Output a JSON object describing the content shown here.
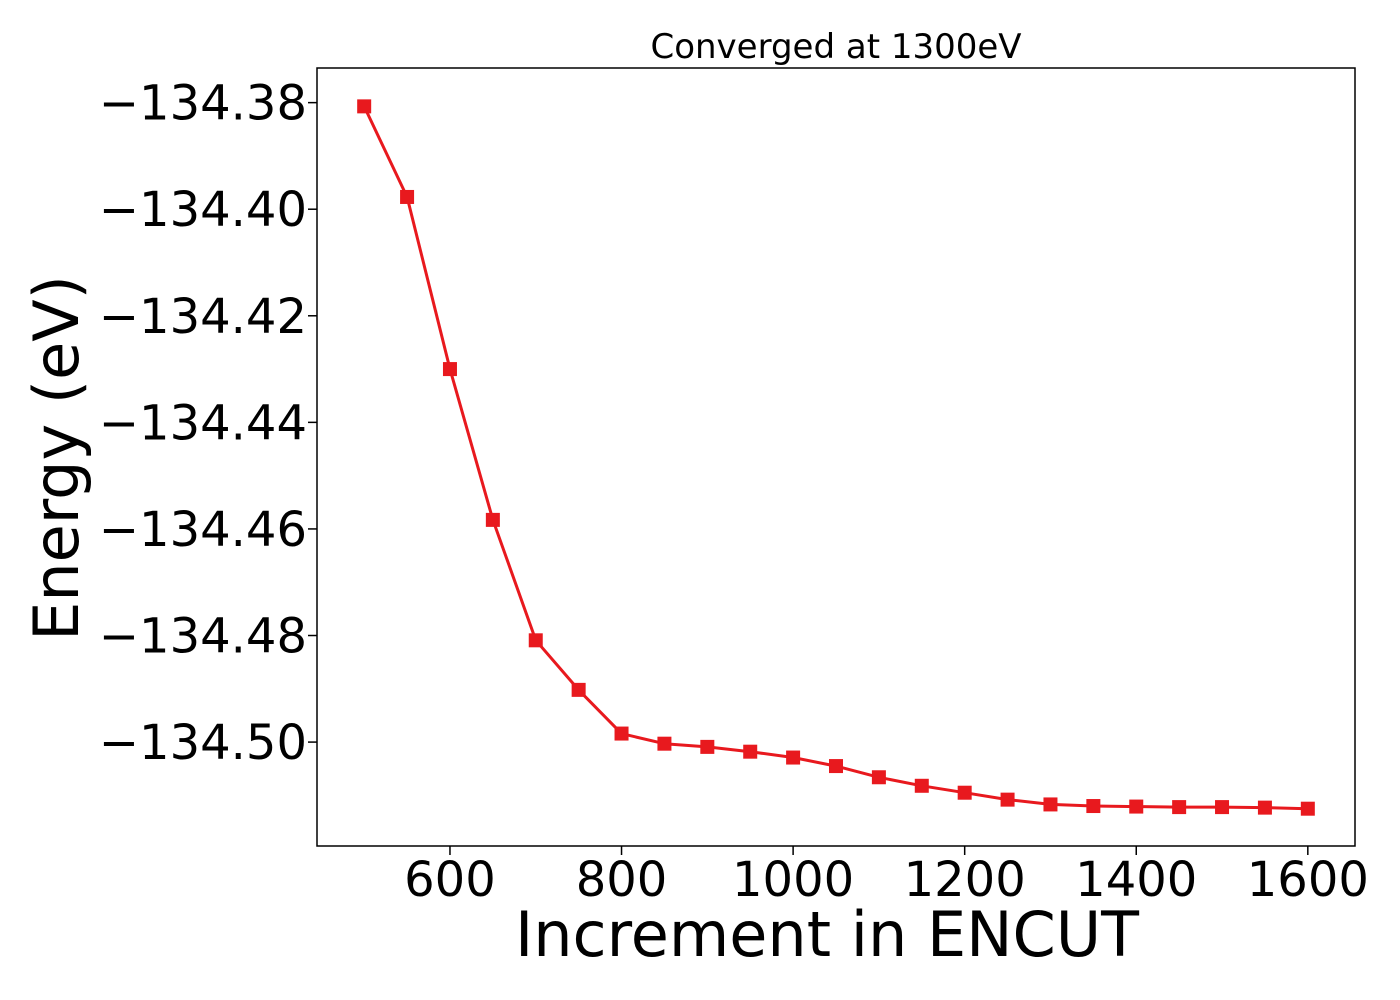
{
  "chart_data": {
    "type": "line",
    "title": "Converged at 1300eV",
    "xlabel": "Increment in ENCUT",
    "ylabel": "Energy (eV)",
    "xlim": [
      445,
      1655
    ],
    "ylim": [
      -134.5195,
      -134.3735
    ],
    "x_ticks": [
      600,
      800,
      1000,
      1200,
      1400,
      1600
    ],
    "x_tick_labels": [
      "600",
      "800",
      "1000",
      "1200",
      "1400",
      "1600"
    ],
    "y_ticks": [
      -134.38,
      -134.4,
      -134.42,
      -134.44,
      -134.46,
      -134.48,
      -134.5
    ],
    "y_tick_labels": [
      "−134.38",
      "−134.40",
      "−134.42",
      "−134.44",
      "−134.46",
      "−134.48",
      "−134.50"
    ],
    "grid": false,
    "series": [
      {
        "color": "#e8191e",
        "marker": "square",
        "x": [
          500,
          550,
          600,
          650,
          700,
          750,
          800,
          850,
          900,
          950,
          1000,
          1050,
          1100,
          1150,
          1200,
          1250,
          1300,
          1350,
          1400,
          1450,
          1500,
          1550,
          1600
        ],
        "y": [
          -134.3807,
          -134.3977,
          -134.43,
          -134.4583,
          -134.4809,
          -134.4902,
          -134.4984,
          -134.5003,
          -134.5009,
          -134.5018,
          -134.5029,
          -134.5045,
          -134.5066,
          -134.5082,
          -134.5095,
          -134.5108,
          -134.5117,
          -134.512,
          -134.5121,
          -134.5122,
          -134.5122,
          -134.5123,
          -134.5125
        ]
      }
    ]
  }
}
